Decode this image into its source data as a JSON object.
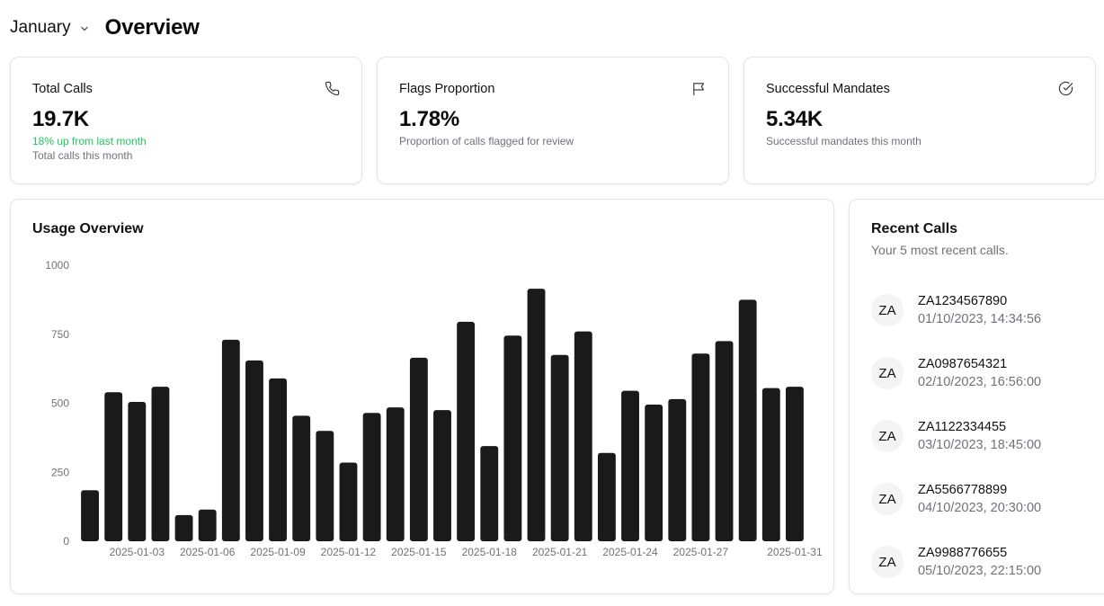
{
  "header": {
    "month": "January",
    "title": "Overview"
  },
  "stats": [
    {
      "title": "Total Calls",
      "icon": "phone-icon",
      "value": "19.7K",
      "change": "18% up from last month",
      "subtitle": "Total calls this month"
    },
    {
      "title": "Flags Proportion",
      "icon": "flag-icon",
      "value": "1.78%",
      "subtitle": "Proportion of calls flagged for review"
    },
    {
      "title": "Successful Mandates",
      "icon": "check-circle-icon",
      "value": "5.34K",
      "subtitle": "Successful mandates this month"
    }
  ],
  "usage": {
    "title": "Usage Overview"
  },
  "chart_data": {
    "type": "bar",
    "categories": [
      "2025-01-01",
      "2025-01-02",
      "2025-01-03",
      "2025-01-04",
      "2025-01-05",
      "2025-01-06",
      "2025-01-07",
      "2025-01-08",
      "2025-01-09",
      "2025-01-10",
      "2025-01-11",
      "2025-01-12",
      "2025-01-13",
      "2025-01-14",
      "2025-01-15",
      "2025-01-16",
      "2025-01-17",
      "2025-01-18",
      "2025-01-19",
      "2025-01-20",
      "2025-01-21",
      "2025-01-22",
      "2025-01-23",
      "2025-01-24",
      "2025-01-25",
      "2025-01-26",
      "2025-01-27",
      "2025-01-28",
      "2025-01-29",
      "2025-01-30",
      "2025-01-31"
    ],
    "values": [
      185,
      540,
      505,
      560,
      95,
      115,
      730,
      655,
      590,
      455,
      400,
      285,
      465,
      485,
      665,
      475,
      795,
      345,
      745,
      915,
      675,
      760,
      320,
      545,
      495,
      515,
      680,
      725,
      875,
      555,
      560
    ],
    "x_tick_labels": [
      "2025-01-03",
      "2025-01-06",
      "2025-01-09",
      "2025-01-12",
      "2025-01-15",
      "2025-01-18",
      "2025-01-21",
      "2025-01-24",
      "2025-01-27",
      "2025-01-31"
    ],
    "y_ticks": [
      0,
      250,
      500,
      750,
      1000
    ],
    "ylim": [
      0,
      1000
    ],
    "title": "Usage Overview",
    "xlabel": "",
    "ylabel": "",
    "bar_color": "#1a1a1a",
    "grid": false,
    "legend": "none"
  },
  "recent": {
    "title": "Recent Calls",
    "subtitle": "Your 5 most recent calls.",
    "items": [
      {
        "avatar": "ZA",
        "id": "ZA1234567890",
        "time": "01/10/2023, 14:34:56"
      },
      {
        "avatar": "ZA",
        "id": "ZA0987654321",
        "time": "02/10/2023, 16:56:00"
      },
      {
        "avatar": "ZA",
        "id": "ZA1122334455",
        "time": "03/10/2023, 18:45:00"
      },
      {
        "avatar": "ZA",
        "id": "ZA5566778899",
        "time": "04/10/2023, 20:30:00"
      },
      {
        "avatar": "ZA",
        "id": "ZA9988776655",
        "time": "05/10/2023, 22:15:00"
      }
    ]
  },
  "colors": {
    "accent_positive": "#22c55e",
    "muted_text": "#71717a",
    "border": "#e4e4e7"
  }
}
